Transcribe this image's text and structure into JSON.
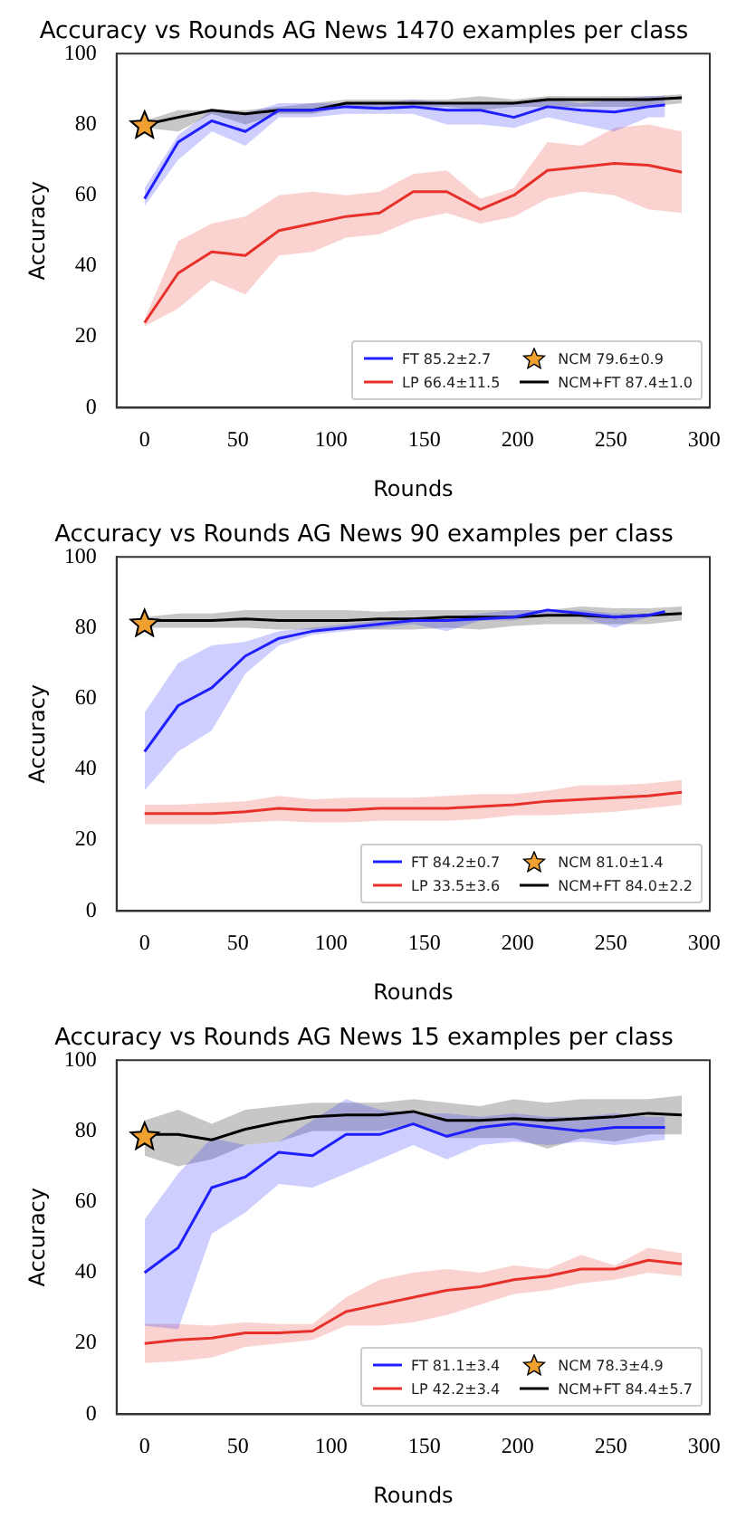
{
  "chart_data": [
    {
      "type": "line",
      "title": "Accuracy vs Rounds AG News 1470 examples per class",
      "xlabel": "Rounds",
      "ylabel": "Accuracy",
      "x": [
        0,
        18,
        36,
        54,
        72,
        90,
        108,
        126,
        144,
        162,
        180,
        198,
        216,
        234,
        252,
        270,
        288
      ],
      "xlim": [
        -15,
        303
      ],
      "ylim": [
        0,
        100
      ],
      "xticks": [
        0,
        50,
        100,
        150,
        200,
        250,
        300
      ],
      "yticks": [
        0,
        20,
        40,
        60,
        80,
        100
      ],
      "grid": false,
      "legend": "bottom right",
      "series": [
        {
          "name": "FT 85.2±2.7",
          "color": "#1f1fff",
          "x": [
            0,
            18,
            36,
            54,
            72,
            90,
            108,
            126,
            144,
            162,
            180,
            198,
            216,
            234,
            252,
            270,
            279
          ],
          "values": [
            59,
            75,
            81,
            78,
            84,
            84,
            85,
            84.5,
            85,
            84,
            84,
            82,
            85,
            84,
            83.5,
            85,
            85.5
          ],
          "lower": [
            57,
            70,
            78,
            74,
            82,
            82,
            83,
            83,
            83,
            80,
            80,
            79,
            82,
            80,
            78,
            82,
            82
          ],
          "upper": [
            62,
            77,
            84,
            83,
            86,
            86,
            86,
            86,
            87,
            86,
            86,
            86,
            87,
            86,
            87,
            88,
            88
          ]
        },
        {
          "name": "LP 66.4±11.5",
          "color": "#e8302a",
          "values": [
            24,
            38,
            44,
            43,
            50,
            52,
            54,
            55,
            61,
            61,
            56,
            60,
            67,
            68,
            69,
            68.5,
            66.5
          ],
          "lower": [
            23,
            28,
            36,
            32,
            43,
            44,
            48,
            49,
            53,
            55,
            52,
            54,
            59,
            61,
            60,
            56,
            55
          ],
          "upper": [
            25,
            47,
            52,
            54,
            60,
            61,
            60,
            61,
            66,
            67,
            59,
            62,
            75,
            74,
            79,
            80,
            78
          ]
        },
        {
          "name": "NCM 79.6±0.9",
          "type": "scatter",
          "marker": "star",
          "color": "#f0a030",
          "x": [
            0
          ],
          "values": [
            79.6
          ]
        },
        {
          "name": "NCM+FT 87.4±1.0",
          "color": "#000000",
          "values": [
            80,
            82,
            84,
            83,
            84,
            84,
            86,
            86,
            86,
            86,
            86,
            86,
            87,
            87,
            87,
            87,
            87.5
          ],
          "lower": [
            79,
            78,
            83,
            80,
            83,
            83,
            85,
            85,
            85,
            85,
            84,
            85,
            85,
            85,
            85,
            85,
            86
          ],
          "upper": [
            81,
            84,
            84,
            84,
            85,
            86,
            87,
            87,
            87,
            87,
            88,
            87,
            88,
            88,
            88,
            88,
            88.5
          ]
        }
      ]
    },
    {
      "type": "line",
      "title": "Accuracy vs Rounds AG News 90 examples per class",
      "xlabel": "Rounds",
      "ylabel": "Accuracy",
      "x": [
        0,
        18,
        36,
        54,
        72,
        90,
        108,
        126,
        144,
        162,
        180,
        198,
        216,
        234,
        252,
        270,
        288
      ],
      "xlim": [
        -15,
        303
      ],
      "ylim": [
        0,
        100
      ],
      "xticks": [
        0,
        50,
        100,
        150,
        200,
        250,
        300
      ],
      "yticks": [
        0,
        20,
        40,
        60,
        80,
        100
      ],
      "grid": false,
      "legend": "bottom right",
      "series": [
        {
          "name": "FT 84.2±0.7",
          "color": "#1f1fff",
          "x": [
            0,
            18,
            36,
            54,
            72,
            90,
            108,
            126,
            144,
            162,
            180,
            198,
            216,
            234,
            252,
            270,
            279
          ],
          "values": [
            45,
            58,
            63,
            72,
            77,
            79,
            80,
            81,
            82,
            82,
            82.5,
            83,
            85,
            84,
            83,
            83.5,
            84.5
          ],
          "lower": [
            34,
            45,
            51,
            67,
            75,
            78,
            79,
            80,
            81,
            79,
            82,
            82,
            84,
            83,
            80,
            83,
            84
          ],
          "upper": [
            56,
            70,
            75,
            76,
            79,
            80,
            81,
            82,
            82,
            83,
            84,
            85,
            85,
            85,
            84,
            84,
            85
          ]
        },
        {
          "name": "LP 33.5±3.6",
          "color": "#e8302a",
          "values": [
            27.5,
            27.5,
            27.5,
            28,
            29,
            28.5,
            28.5,
            29,
            29,
            29,
            29.5,
            30,
            31,
            31.5,
            32,
            32.5,
            33.5
          ],
          "lower": [
            24.5,
            24.5,
            24.5,
            25,
            25.5,
            25,
            25,
            25.5,
            25.5,
            25.5,
            26,
            27,
            27,
            27.5,
            28,
            29,
            30
          ],
          "upper": [
            30,
            30,
            30.5,
            31,
            32.5,
            31.5,
            32,
            32,
            32,
            32.5,
            33,
            33,
            34,
            35.5,
            35.5,
            36,
            37
          ]
        },
        {
          "name": "NCM 81.0±1.4",
          "type": "scatter",
          "marker": "star",
          "color": "#f0a030",
          "x": [
            0
          ],
          "values": [
            81.0
          ]
        },
        {
          "name": "NCM+FT 84.0±2.2",
          "color": "#000000",
          "values": [
            82,
            82,
            82,
            82.5,
            82,
            82,
            82,
            82.5,
            82.5,
            83,
            83,
            83,
            83.5,
            83.5,
            83,
            83.5,
            84
          ],
          "lower": [
            80,
            80,
            80,
            80,
            79.5,
            79.5,
            79.5,
            79.5,
            79.5,
            80,
            79.5,
            80.5,
            81,
            81,
            81,
            81,
            82
          ],
          "upper": [
            83,
            84,
            84,
            85,
            85,
            85,
            85,
            84.5,
            85,
            85,
            85,
            85,
            85,
            86,
            85.5,
            85.5,
            86
          ]
        }
      ]
    },
    {
      "type": "line",
      "title": "Accuracy vs Rounds AG News 15 examples per class",
      "xlabel": "Rounds",
      "ylabel": "Accuracy",
      "x": [
        0,
        18,
        36,
        54,
        72,
        90,
        108,
        126,
        144,
        162,
        180,
        198,
        216,
        234,
        252,
        270,
        288
      ],
      "xlim": [
        -15,
        303
      ],
      "ylim": [
        0,
        100
      ],
      "xticks": [
        0,
        50,
        100,
        150,
        200,
        250,
        300
      ],
      "yticks": [
        0,
        20,
        40,
        60,
        80,
        100
      ],
      "grid": false,
      "legend": "bottom right",
      "series": [
        {
          "name": "FT 81.1±3.4",
          "color": "#1f1fff",
          "x": [
            0,
            18,
            36,
            54,
            72,
            90,
            108,
            126,
            144,
            162,
            180,
            198,
            216,
            234,
            252,
            270,
            279
          ],
          "values": [
            40,
            47,
            64,
            67,
            74,
            73,
            79,
            79,
            82,
            78.5,
            81,
            82,
            81,
            80,
            81,
            81,
            81
          ],
          "lower": [
            25,
            24,
            51,
            57,
            65,
            64,
            68,
            72,
            76,
            72,
            76,
            77,
            76,
            77,
            76,
            77,
            77.5
          ],
          "upper": [
            55,
            68,
            78,
            76,
            77,
            83,
            89,
            86,
            85,
            85,
            84,
            85,
            84,
            84,
            85,
            84,
            84
          ]
        },
        {
          "name": "LP 42.2±3.4",
          "color": "#e8302a",
          "values": [
            20,
            21,
            21.5,
            23,
            23,
            23.5,
            29,
            31,
            33,
            35,
            36,
            38,
            39,
            41,
            41,
            43.5,
            42.5
          ],
          "lower": [
            14.5,
            15,
            16,
            19,
            20,
            21,
            25,
            25,
            26,
            28,
            31,
            34,
            35,
            37,
            38,
            40,
            39
          ],
          "upper": [
            25.5,
            25.5,
            25,
            26,
            25.5,
            25.5,
            33,
            38,
            40,
            41,
            40,
            42,
            41,
            45,
            42,
            47,
            45.5
          ]
        },
        {
          "name": "NCM 78.3±4.9",
          "type": "scatter",
          "marker": "star",
          "color": "#f0a030",
          "x": [
            0
          ],
          "values": [
            78.3
          ]
        },
        {
          "name": "NCM+FT 84.4±5.7",
          "color": "#000000",
          "values": [
            79,
            79,
            77.5,
            80.5,
            82.5,
            84,
            84.5,
            84.5,
            85.5,
            83,
            83,
            83.5,
            83,
            83.5,
            84,
            85,
            84.5
          ],
          "lower": [
            73,
            70,
            72,
            76,
            77,
            80,
            80,
            80,
            82,
            78,
            78,
            78,
            75,
            78,
            77,
            79,
            79
          ],
          "upper": [
            83,
            86,
            82,
            86,
            87,
            88,
            88,
            88,
            89,
            88,
            87,
            89,
            88,
            89,
            89,
            89,
            90
          ]
        }
      ]
    }
  ]
}
